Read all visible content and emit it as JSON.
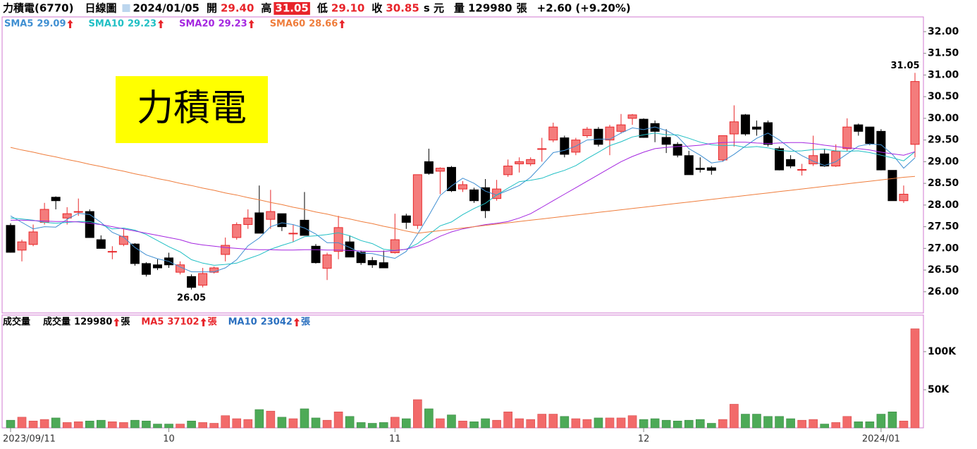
{
  "header": {
    "stock": "力積電(6770)",
    "period": "日線圖",
    "date": "2024/01/05",
    "open_label": "開",
    "open": "29.40",
    "high_label": "高",
    "high": "31.05",
    "low_label": "低",
    "low": "29.10",
    "close_label": "收",
    "close": "30.85",
    "price_unit": "s 元",
    "volume_label": "量",
    "volume": "129980",
    "volume_unit": "張",
    "change": "+2.60 (+9.20%)"
  },
  "logo_text": "力積電",
  "chart_data": [
    {
      "type": "candlestick",
      "up_color": "#f47c7c",
      "up_stroke": "#e8282b",
      "down_color": "#000000",
      "ylim": [
        25.51,
        32.34
      ],
      "yticks": [
        {
          "value": 26,
          "label": "26.00"
        },
        {
          "value": 26.5,
          "label": "26.50"
        },
        {
          "value": 27,
          "label": "27.00"
        },
        {
          "value": 27.5,
          "label": "27.50"
        },
        {
          "value": 28,
          "label": "28.00"
        },
        {
          "value": 28.5,
          "label": "28.50"
        },
        {
          "value": 29,
          "label": "29.00"
        },
        {
          "value": 29.5,
          "label": "29.50"
        },
        {
          "value": 30,
          "label": "30.00"
        },
        {
          "value": 30.5,
          "label": "30.50"
        },
        {
          "value": 31,
          "label": "31.00"
        },
        {
          "value": 31.5,
          "label": "31.50"
        },
        {
          "value": 32,
          "label": "32.00"
        }
      ],
      "open": [
        27.53,
        26.96,
        27.09,
        27.6,
        28.18,
        27.7,
        27.85,
        27.85,
        27.2,
        26.93,
        27.09,
        27.1,
        26.65,
        26.62,
        26.78,
        26.45,
        26.35,
        26.15,
        26.45,
        26.86,
        27.25,
        27.55,
        27.82,
        27.67,
        27.8,
        27.35,
        27.65,
        27.05,
        26.54,
        26.93,
        27.15,
        26.91,
        26.72,
        26.67,
        26.9,
        27.75,
        27.53,
        29.0,
        28.78,
        28.87,
        28.37,
        28.35,
        28.4,
        28.15,
        28.7,
        28.95,
        28.95,
        29.3,
        29.5,
        29.55,
        29.22,
        29.6,
        29.75,
        29.5,
        29.7,
        30.0,
        29.98,
        29.88,
        29.56,
        29.4,
        29.14,
        28.85,
        28.86,
        29.04,
        29.64,
        30.08,
        29.8,
        29.9,
        29.3,
        29.05,
        28.82,
        28.95,
        29.18,
        28.9,
        29.3,
        29.85,
        29.8,
        29.7,
        28.8,
        28.1,
        29.4
      ],
      "high": [
        27.58,
        27.2,
        27.55,
        28.05,
        28.2,
        27.95,
        28.15,
        27.9,
        27.3,
        27.05,
        27.45,
        27.12,
        26.68,
        26.75,
        26.9,
        26.7,
        26.4,
        26.55,
        26.58,
        27.25,
        27.6,
        27.9,
        28.45,
        28.35,
        27.8,
        27.55,
        28.3,
        27.1,
        26.9,
        27.75,
        27.3,
        26.95,
        26.8,
        26.95,
        27.8,
        27.8,
        28.7,
        29.3,
        28.87,
        28.9,
        28.55,
        28.4,
        28.6,
        28.58,
        29.05,
        29.1,
        29.1,
        29.55,
        29.9,
        29.6,
        29.55,
        29.8,
        29.8,
        29.85,
        30.1,
        30.1,
        30.0,
        29.95,
        29.75,
        29.45,
        29.25,
        29.1,
        28.9,
        29.6,
        30.3,
        30.1,
        29.95,
        29.95,
        29.35,
        29.15,
        28.95,
        29.6,
        29.3,
        29.4,
        30.0,
        29.88,
        29.8,
        29.75,
        28.8,
        28.45,
        31.05
      ],
      "low": [
        26.9,
        26.7,
        27.05,
        27.55,
        27.9,
        27.55,
        27.75,
        27.25,
        27.0,
        26.75,
        27.05,
        26.6,
        26.35,
        26.5,
        26.55,
        26.4,
        26.05,
        26.1,
        26.42,
        26.7,
        27.2,
        27.45,
        27.35,
        27.45,
        27.4,
        27.15,
        27.3,
        26.65,
        26.27,
        26.75,
        26.8,
        26.62,
        26.55,
        26.55,
        26.88,
        27.45,
        27.45,
        28.7,
        28.25,
        28.3,
        28.3,
        28.05,
        27.7,
        28.1,
        28.65,
        28.75,
        28.9,
        29.0,
        29.45,
        29.1,
        29.15,
        29.55,
        29.35,
        29.15,
        29.65,
        29.85,
        29.55,
        29.45,
        29.2,
        29.1,
        28.7,
        28.75,
        28.7,
        29.0,
        29.35,
        29.6,
        29.6,
        29.35,
        28.8,
        28.85,
        28.68,
        28.9,
        28.88,
        28.88,
        29.25,
        29.6,
        29.38,
        28.8,
        28.1,
        28.05,
        29.1
      ],
      "close": [
        26.91,
        27.15,
        27.38,
        27.9,
        28.1,
        27.8,
        27.85,
        27.25,
        27.0,
        26.93,
        27.28,
        26.65,
        26.4,
        26.55,
        26.62,
        26.62,
        26.1,
        26.42,
        26.55,
        27.07,
        27.55,
        27.7,
        27.35,
        27.85,
        27.5,
        27.35,
        27.3,
        26.67,
        26.85,
        27.48,
        26.8,
        26.67,
        26.62,
        26.55,
        27.2,
        27.6,
        28.7,
        28.73,
        28.85,
        28.33,
        28.47,
        28.1,
        27.87,
        28.37,
        28.9,
        29.0,
        29.05,
        29.3,
        29.8,
        29.17,
        29.5,
        29.75,
        29.4,
        29.8,
        29.85,
        30.08,
        29.56,
        29.7,
        29.4,
        29.15,
        28.7,
        28.82,
        28.8,
        29.6,
        29.92,
        29.64,
        29.75,
        29.4,
        28.81,
        28.9,
        28.82,
        29.14,
        28.9,
        29.24,
        29.8,
        29.7,
        29.42,
        28.81,
        28.1,
        28.25,
        30.85
      ],
      "ma": [
        {
          "name": "SMA5",
          "color": "#3f8fd2",
          "values": [
            27.75,
            27.6,
            27.45,
            27.5,
            27.49,
            27.67,
            27.81,
            27.78,
            27.6,
            27.37,
            27.26,
            27.02,
            26.85,
            26.76,
            26.7,
            26.57,
            26.46,
            26.46,
            26.46,
            26.55,
            26.74,
            27.06,
            27.24,
            27.5,
            27.59,
            27.55,
            27.47,
            27.33,
            27.13,
            27.13,
            27.02,
            26.89,
            26.88,
            26.82,
            26.77,
            26.93,
            27.33,
            27.76,
            28.22,
            28.44,
            28.62,
            28.5,
            28.32,
            28.23,
            28.34,
            28.45,
            28.64,
            28.92,
            29.21,
            29.26,
            29.36,
            29.5,
            29.52,
            29.52,
            29.66,
            29.78,
            29.74,
            29.8,
            29.72,
            29.58,
            29.3,
            29.15,
            28.97,
            29.01,
            29.17,
            29.36,
            29.54,
            29.66,
            29.5,
            29.3,
            29.14,
            29.01,
            28.91,
            29.0,
            29.18,
            29.36,
            29.41,
            29.39,
            29.17,
            28.85,
            29.09
          ]
        },
        {
          "name": "SMA10",
          "color": "#1fbfc4",
          "values": [
            27.7,
            27.68,
            27.65,
            27.6,
            27.58,
            27.6,
            27.62,
            27.62,
            27.55,
            27.45,
            27.47,
            27.42,
            27.32,
            27.18,
            27.04,
            26.92,
            26.74,
            26.66,
            26.61,
            26.63,
            26.66,
            26.76,
            26.85,
            26.98,
            27.07,
            27.15,
            27.27,
            27.29,
            27.32,
            27.36,
            27.29,
            27.18,
            27.11,
            26.98,
            26.95,
            26.98,
            27.11,
            27.32,
            27.52,
            27.61,
            27.78,
            27.92,
            28.04,
            28.23,
            28.39,
            28.54,
            28.57,
            28.62,
            28.72,
            28.8,
            28.91,
            29.07,
            29.22,
            29.37,
            29.46,
            29.57,
            29.62,
            29.66,
            29.62,
            29.62,
            29.54,
            29.45,
            29.39,
            29.37,
            29.38,
            29.33,
            29.35,
            29.32,
            29.26,
            29.24,
            29.25,
            29.28,
            29.29,
            29.25,
            29.24,
            29.25,
            29.21,
            29.15,
            29.09,
            29.02,
            29.23
          ]
        },
        {
          "name": "SMA20",
          "color": "#a426e0",
          "values": [
            27.65,
            27.65,
            27.64,
            27.63,
            27.62,
            27.62,
            27.61,
            27.58,
            27.55,
            27.5,
            27.45,
            27.4,
            27.35,
            27.3,
            27.25,
            27.2,
            27.12,
            27.08,
            27.05,
            27.02,
            27.0,
            26.98,
            26.97,
            26.97,
            26.96,
            26.96,
            26.97,
            26.97,
            26.96,
            26.96,
            26.95,
            26.94,
            26.93,
            26.93,
            26.95,
            26.98,
            27.05,
            27.15,
            27.28,
            27.38,
            27.45,
            27.5,
            27.55,
            27.58,
            27.62,
            27.7,
            27.8,
            27.95,
            28.1,
            28.25,
            28.4,
            28.55,
            28.7,
            28.85,
            29.0,
            29.12,
            29.22,
            29.3,
            29.33,
            29.35,
            29.36,
            29.38,
            29.42,
            29.44,
            29.45,
            29.45,
            29.43,
            29.42,
            29.43,
            29.44,
            29.44,
            29.42,
            29.38,
            29.35,
            29.32,
            29.3,
            29.27,
            29.22,
            29.18,
            29.15,
            29.23
          ]
        },
        {
          "name": "SMA60",
          "color": "#ef7d3c",
          "values": [
            29.33,
            29.27,
            29.22,
            29.16,
            29.11,
            29.05,
            29.0,
            28.94,
            28.89,
            28.83,
            28.78,
            28.72,
            28.67,
            28.61,
            28.56,
            28.5,
            28.45,
            28.39,
            28.34,
            28.28,
            28.23,
            28.17,
            28.12,
            28.06,
            28.01,
            27.95,
            27.9,
            27.84,
            27.79,
            27.73,
            27.68,
            27.62,
            27.57,
            27.51,
            27.46,
            27.4,
            27.35,
            27.38,
            27.41,
            27.44,
            27.47,
            27.5,
            27.53,
            27.56,
            27.59,
            27.62,
            27.65,
            27.68,
            27.71,
            27.74,
            27.77,
            27.8,
            27.83,
            27.86,
            27.89,
            27.92,
            27.95,
            27.98,
            28.01,
            28.04,
            28.07,
            28.1,
            28.13,
            28.16,
            28.19,
            28.22,
            28.25,
            28.28,
            28.31,
            28.34,
            28.37,
            28.4,
            28.43,
            28.46,
            28.49,
            28.52,
            28.55,
            28.58,
            28.61,
            28.64,
            28.66
          ]
        }
      ]
    },
    {
      "type": "bar",
      "title": "成交量",
      "unit": "張",
      "up_color": "#f26a6a",
      "down_color": "#4daa57",
      "categories": [
        "2023/09/11",
        null,
        null,
        null,
        null,
        null,
        null,
        null,
        null,
        null,
        null,
        null,
        null,
        null,
        "10",
        null,
        null,
        null,
        null,
        null,
        null,
        null,
        null,
        null,
        null,
        null,
        null,
        null,
        null,
        null,
        null,
        null,
        null,
        null,
        "11",
        null,
        null,
        null,
        null,
        null,
        null,
        null,
        null,
        null,
        null,
        null,
        null,
        null,
        null,
        null,
        null,
        null,
        null,
        null,
        null,
        null,
        "12",
        null,
        null,
        null,
        null,
        null,
        null,
        null,
        null,
        null,
        null,
        null,
        null,
        null,
        null,
        null,
        null,
        null,
        null,
        null,
        null,
        "2024/01",
        null,
        null,
        null
      ],
      "values": [
        10000,
        14000,
        9000,
        11000,
        13000,
        7000,
        8000,
        9000,
        10000,
        8000,
        7000,
        10000,
        9000,
        5000,
        5000,
        5000,
        9000,
        7000,
        6000,
        16000,
        12000,
        11000,
        24000,
        22000,
        14000,
        12000,
        25000,
        13000,
        10000,
        21000,
        15000,
        7000,
        6000,
        7000,
        14000,
        12000,
        37000,
        25000,
        12000,
        17000,
        9000,
        8000,
        12000,
        10000,
        21000,
        12000,
        11000,
        18000,
        18000,
        15000,
        12000,
        11000,
        13000,
        13000,
        13000,
        16000,
        11000,
        12000,
        10000,
        9000,
        10000,
        11000,
        6000,
        11000,
        31000,
        18000,
        18000,
        15000,
        15000,
        12000,
        10000,
        11000,
        5000,
        7000,
        15000,
        8000,
        8000,
        18000,
        21000,
        9000,
        129980
      ],
      "ylim": [
        0,
        148000
      ],
      "yticks": [
        {
          "value": 50000,
          "label": "50K"
        },
        {
          "value": 100000,
          "label": "100K"
        }
      ],
      "legend": [
        {
          "name": "MA5",
          "value": 37102,
          "color": "#e8242a"
        },
        {
          "name": "MA10",
          "value": 23042,
          "color": "#2a6fbf"
        }
      ]
    }
  ]
}
